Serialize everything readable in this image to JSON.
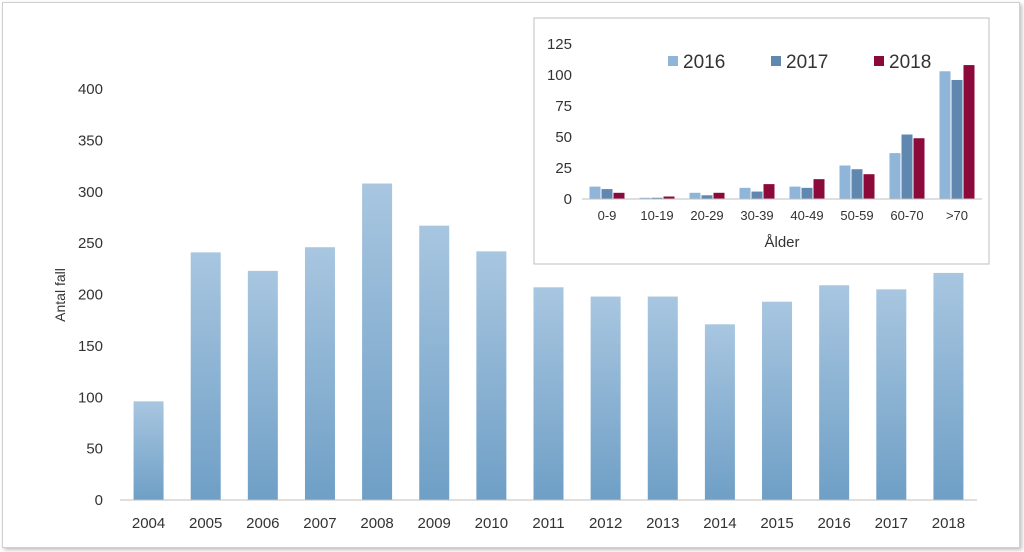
{
  "chart_data": [
    {
      "type": "bar",
      "title": "",
      "xlabel": "",
      "ylabel": "Antal fall",
      "ylim": [
        0,
        400
      ],
      "yticks": [
        0,
        50,
        100,
        150,
        200,
        250,
        300,
        350,
        400
      ],
      "grid": false,
      "categories": [
        "2004",
        "2005",
        "2006",
        "2007",
        "2008",
        "2009",
        "2010",
        "2011",
        "2012",
        "2013",
        "2014",
        "2015",
        "2016",
        "2017",
        "2018"
      ],
      "values": [
        96,
        241,
        223,
        246,
        308,
        267,
        242,
        207,
        198,
        198,
        171,
        193,
        209,
        205,
        221
      ],
      "bar_color_top": "#a8c6e0",
      "bar_color_bottom": "#6f9fc6"
    },
    {
      "type": "bar",
      "title": "",
      "xlabel": "Ålder",
      "ylabel": "",
      "ylim": [
        0,
        125
      ],
      "yticks": [
        0,
        25,
        50,
        75,
        100,
        125
      ],
      "grid": false,
      "legend": "top-inside",
      "categories": [
        "0-9",
        "10-19",
        "20-29",
        "30-39",
        "40-49",
        "50-59",
        "60-70",
        ">70"
      ],
      "series": [
        {
          "name": "2016",
          "color": "#8fb5d8",
          "values": [
            10,
            1,
            5,
            9,
            10,
            27,
            37,
            103
          ]
        },
        {
          "name": "2017",
          "color": "#5f87b0",
          "values": [
            8,
            1,
            3,
            6,
            9,
            24,
            52,
            96
          ]
        },
        {
          "name": "2018",
          "color": "#8b0a3a",
          "values": [
            5,
            2,
            5,
            12,
            16,
            20,
            49,
            108
          ]
        }
      ]
    }
  ]
}
